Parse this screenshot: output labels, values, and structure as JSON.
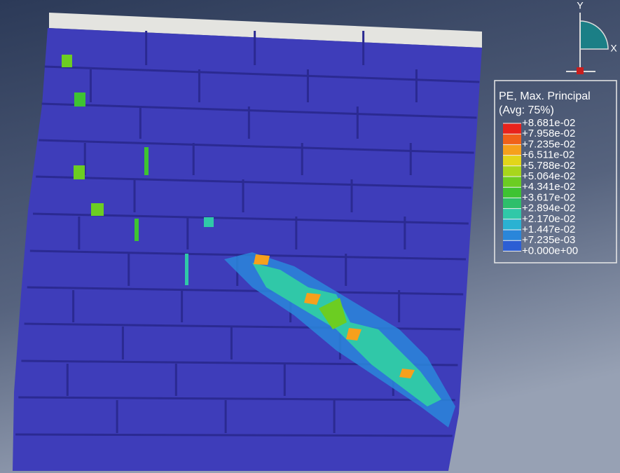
{
  "triad": {
    "y_label": "Y",
    "x_label": "X"
  },
  "legend": {
    "title": "PE, Max. Principal",
    "subtitle": "(Avg: 75%)",
    "labels": [
      "+8.681e-02",
      "+7.958e-02",
      "+7.235e-02",
      "+6.511e-02",
      "+5.788e-02",
      "+5.064e-02",
      "+4.341e-02",
      "+3.617e-02",
      "+2.894e-02",
      "+2.170e-02",
      "+1.447e-02",
      "+7.235e-03",
      "+0.000e+00"
    ],
    "colors": [
      "#e8231c",
      "#f0611a",
      "#f6a01c",
      "#e2d51a",
      "#a8d61c",
      "#6ccd22",
      "#3ec332",
      "#2ebf6a",
      "#30c8a8",
      "#2ab2d2",
      "#2a86da",
      "#2c5ed4"
    ]
  }
}
